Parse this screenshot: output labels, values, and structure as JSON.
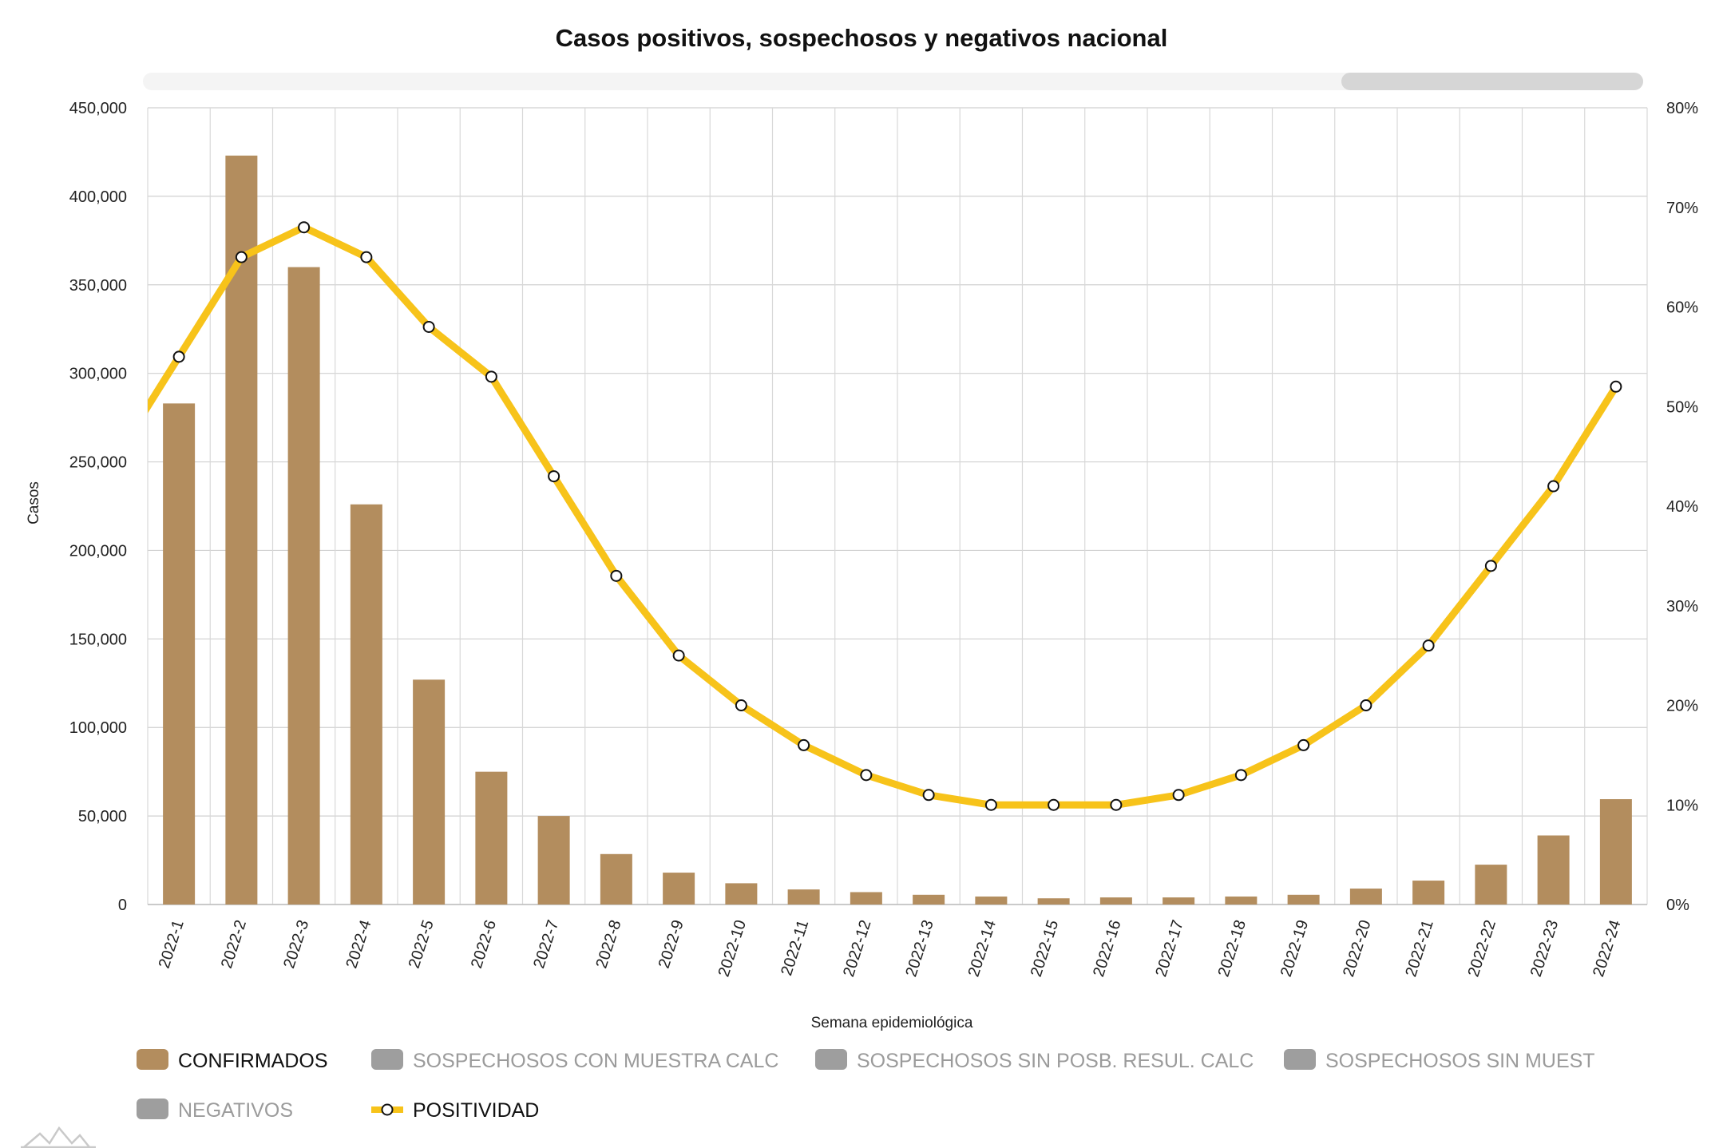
{
  "chart_data": {
    "type": "bar",
    "title": "Casos positivos, sospechosos y negativos nacional",
    "xlabel": "Semana epidemiológica",
    "ylabel": "Casos",
    "ylim": [
      0,
      450000
    ],
    "y2lim": [
      0,
      80
    ],
    "y_ticks": [
      "0",
      "50,000",
      "100,000",
      "150,000",
      "200,000",
      "250,000",
      "300,000",
      "350,000",
      "400,000",
      "450,000"
    ],
    "y2_ticks": [
      "0%",
      "10%",
      "20%",
      "30%",
      "40%",
      "50%",
      "60%",
      "70%",
      "80%"
    ],
    "categories": [
      "2022-1",
      "2022-2",
      "2022-3",
      "2022-4",
      "2022-5",
      "2022-6",
      "2022-7",
      "2022-8",
      "2022-9",
      "2022-10",
      "2022-11",
      "2022-12",
      "2022-13",
      "2022-14",
      "2022-15",
      "2022-16",
      "2022-17",
      "2022-18",
      "2022-19",
      "2022-20",
      "2022-21",
      "2022-22",
      "2022-23",
      "2022-24"
    ],
    "series": [
      {
        "name": "CONFIRMADOS",
        "type": "bar",
        "axis": "left",
        "color": "#b38d5e",
        "values": [
          283000,
          423000,
          360000,
          226000,
          127000,
          75000,
          50000,
          28500,
          18000,
          12000,
          8500,
          7000,
          5500,
          4500,
          3500,
          4000,
          4000,
          4500,
          5500,
          9000,
          13500,
          22500,
          39000,
          59500
        ]
      },
      {
        "name": "POSITIVIDAD",
        "type": "line",
        "axis": "right",
        "color": "#f7c31a",
        "values": [
          55,
          65,
          68,
          65,
          58,
          53,
          43,
          33,
          25,
          20,
          16,
          13,
          11,
          10,
          10,
          10,
          11,
          13,
          16,
          20,
          26,
          34,
          42,
          52
        ]
      }
    ],
    "legend": [
      {
        "label": "CONFIRMADOS",
        "color": "#b38d5e",
        "active": true,
        "kind": "box"
      },
      {
        "label": "SOSPECHOSOS CON MUESTRA CALC",
        "color": "#9e9e9e",
        "active": false,
        "kind": "box"
      },
      {
        "label": "SOSPECHOSOS SIN POSB. RESUL. CALC",
        "color": "#9e9e9e",
        "active": false,
        "kind": "box"
      },
      {
        "label": "SOSPECHOSOS SIN MUEST",
        "color": "#9e9e9e",
        "active": false,
        "kind": "box"
      },
      {
        "label": "NEGATIVOS",
        "color": "#9e9e9e",
        "active": false,
        "kind": "box"
      },
      {
        "label": "POSITIVIDAD",
        "color": "#f7c31a",
        "active": true,
        "kind": "line"
      }
    ],
    "grid": true,
    "legend_position": "bottom-left"
  }
}
